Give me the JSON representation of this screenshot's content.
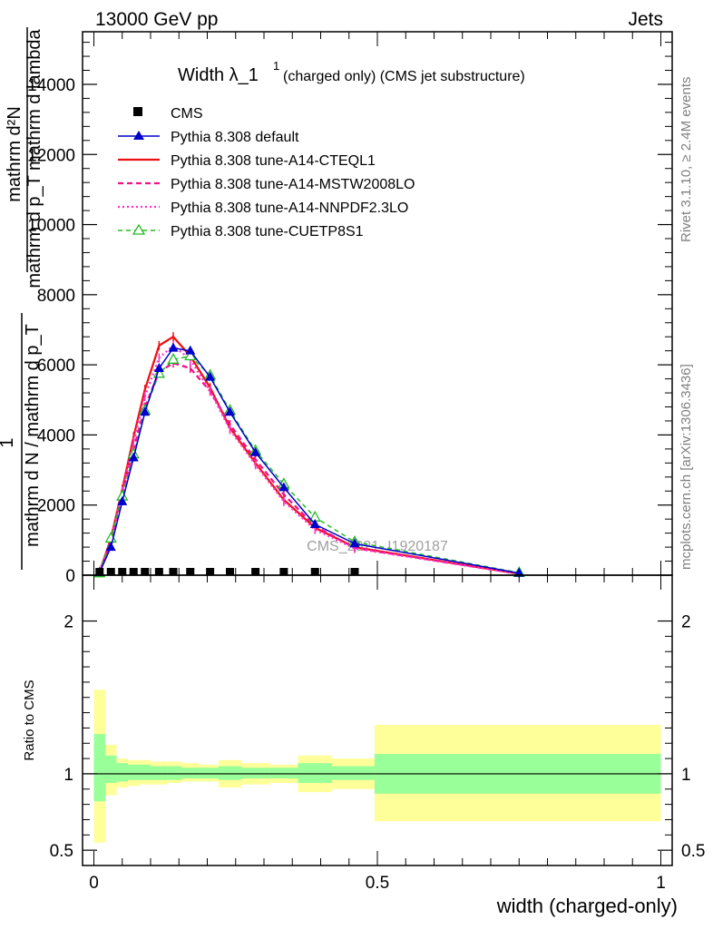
{
  "header": {
    "left": "13000 GeV pp",
    "right": "Jets"
  },
  "side_text": {
    "rivet": "Rivet 3.1.10, ≥ 2.4M events",
    "mcplots": "mcplots.cern.ch [arXiv:1306.3436]"
  },
  "colors": {
    "cms": "#000000",
    "default": "#0000cc",
    "a14_cteql1": "#ee1111",
    "a14_mstw": "#ee1188",
    "a14_nnpdf": "#ff33cc",
    "cuetp8s1": "#22bb22",
    "band_inner": "#99ff99",
    "band_outer": "#ffff99"
  },
  "chart_data": [
    {
      "type": "line",
      "title": "Width λ_1",
      "title_sup": "1",
      "title_suffix": "(charged only) (CMS jet substructure)",
      "ylabel_top": "mathrm d²N",
      "ylabel_mid": "mathrm d p_T mathrm d lambda",
      "ylabel_one": "1",
      "ylabel_bottom": "mathrm d N / mathrm d p_T",
      "ylim": [
        0,
        15500
      ],
      "yticks": [
        0,
        2000,
        4000,
        6000,
        8000,
        10000,
        12000,
        14000
      ],
      "ytick_labels": [
        "0",
        "2000",
        "4000",
        "6000",
        "8000",
        "10000",
        "12000",
        "14000"
      ],
      "xlim": [
        -0.02,
        1.02
      ],
      "watermark": "CMS_2021_I1920187",
      "legend_position": "top-left",
      "legend": [
        "CMS",
        "Pythia 8.308 default",
        "Pythia 8.308 tune-A14-CTEQL1",
        "Pythia 8.308 tune-A14-MSTW2008LO",
        "Pythia 8.308 tune-A14-NNPDF2.3LO",
        "Pythia 8.308 tune-CUETP8S1"
      ],
      "series": [
        {
          "name": "CMS",
          "style": "square",
          "x": [
            0.01,
            0.03,
            0.05,
            0.07,
            0.09,
            0.115,
            0.14,
            0.17,
            0.205,
            0.24,
            0.285,
            0.335,
            0.39,
            0.46
          ],
          "y": [
            0,
            0,
            0,
            0,
            0,
            0,
            0,
            0,
            0,
            0,
            0,
            0,
            0,
            0
          ]
        },
        {
          "name": "Pythia 8.308 default",
          "style": "solid-triangle",
          "x": [
            0.01,
            0.03,
            0.05,
            0.07,
            0.09,
            0.115,
            0.14,
            0.17,
            0.205,
            0.24,
            0.285,
            0.335,
            0.39,
            0.46,
            0.75
          ],
          "y": [
            80,
            800,
            2100,
            3350,
            4650,
            5900,
            6480,
            6400,
            5650,
            4650,
            3500,
            2500,
            1450,
            900,
            60
          ]
        },
        {
          "name": "Pythia 8.308 tune-A14-CTEQL1",
          "style": "solid",
          "x": [
            0.01,
            0.03,
            0.05,
            0.07,
            0.09,
            0.115,
            0.14,
            0.17,
            0.205,
            0.24,
            0.285,
            0.335,
            0.39,
            0.46,
            0.75
          ],
          "y": [
            90,
            1050,
            2450,
            3950,
            5300,
            6550,
            6800,
            6250,
            5350,
            4200,
            3200,
            2150,
            1350,
            800,
            40
          ]
        },
        {
          "name": "Pythia 8.308 tune-A14-MSTW2008LO",
          "style": "dashed",
          "x": [
            0.01,
            0.03,
            0.05,
            0.07,
            0.09,
            0.115,
            0.14,
            0.17,
            0.205,
            0.24,
            0.285,
            0.335,
            0.39,
            0.46,
            0.75
          ],
          "y": [
            70,
            950,
            2300,
            3600,
            4800,
            5800,
            6050,
            5900,
            5250,
            4300,
            3300,
            2300,
            1400,
            780,
            40
          ]
        },
        {
          "name": "Pythia 8.308 tune-A14-NNPDF2.3LO",
          "style": "dotted",
          "x": [
            0.01,
            0.03,
            0.05,
            0.07,
            0.09,
            0.115,
            0.14,
            0.17,
            0.205,
            0.24,
            0.285,
            0.335,
            0.39,
            0.46,
            0.75
          ],
          "y": [
            90,
            1000,
            2400,
            3800,
            5100,
            6200,
            6550,
            6150,
            5250,
            4150,
            3150,
            2100,
            1300,
            760,
            40
          ]
        },
        {
          "name": "Pythia 8.308 tune-CUETP8S1",
          "style": "dashed-open-triangle",
          "x": [
            0.01,
            0.03,
            0.05,
            0.07,
            0.09,
            0.115,
            0.14,
            0.17,
            0.205,
            0.24,
            0.285,
            0.335,
            0.39,
            0.46,
            0.75
          ],
          "y": [
            60,
            1050,
            2250,
            3450,
            4700,
            5750,
            6150,
            6250,
            5700,
            4700,
            3550,
            2600,
            1650,
            950,
            70
          ]
        }
      ]
    },
    {
      "type": "area",
      "ylabel": "Ratio to CMS",
      "xlabel": "width (charged-only)",
      "xlim": [
        -0.02,
        1.02
      ],
      "ylim": [
        0.4,
        2.3
      ],
      "yticks": [
        0.5,
        1,
        2
      ],
      "ytick_labels": [
        "0.5",
        "1",
        "2"
      ],
      "xticks": [
        0,
        0.5,
        1
      ],
      "xtick_labels": [
        "0",
        "0.5",
        "1"
      ],
      "bins": [
        {
          "lo": 0.0,
          "hi": 0.02,
          "inner": [
            0.82,
            1.26
          ],
          "outer": [
            0.55,
            1.55
          ]
        },
        {
          "lo": 0.02,
          "hi": 0.04,
          "inner": [
            0.94,
            1.12
          ],
          "outer": [
            0.86,
            1.19
          ]
        },
        {
          "lo": 0.04,
          "hi": 0.06,
          "inner": [
            0.95,
            1.07
          ],
          "outer": [
            0.91,
            1.1
          ]
        },
        {
          "lo": 0.06,
          "hi": 0.08,
          "inner": [
            0.96,
            1.06
          ],
          "outer": [
            0.92,
            1.09
          ]
        },
        {
          "lo": 0.08,
          "hi": 0.1,
          "inner": [
            0.96,
            1.06
          ],
          "outer": [
            0.93,
            1.09
          ]
        },
        {
          "lo": 0.1,
          "hi": 0.13,
          "inner": [
            0.96,
            1.05
          ],
          "outer": [
            0.93,
            1.08
          ]
        },
        {
          "lo": 0.13,
          "hi": 0.155,
          "inner": [
            0.96,
            1.05
          ],
          "outer": [
            0.94,
            1.08
          ]
        },
        {
          "lo": 0.155,
          "hi": 0.185,
          "inner": [
            0.97,
            1.04
          ],
          "outer": [
            0.95,
            1.07
          ]
        },
        {
          "lo": 0.185,
          "hi": 0.22,
          "inner": [
            0.97,
            1.04
          ],
          "outer": [
            0.95,
            1.06
          ]
        },
        {
          "lo": 0.22,
          "hi": 0.26,
          "inner": [
            0.96,
            1.05
          ],
          "outer": [
            0.91,
            1.09
          ]
        },
        {
          "lo": 0.26,
          "hi": 0.31,
          "inner": [
            0.97,
            1.04
          ],
          "outer": [
            0.93,
            1.07
          ]
        },
        {
          "lo": 0.31,
          "hi": 0.36,
          "inner": [
            0.97,
            1.04
          ],
          "outer": [
            0.94,
            1.06
          ]
        },
        {
          "lo": 0.36,
          "hi": 0.42,
          "inner": [
            0.94,
            1.07
          ],
          "outer": [
            0.88,
            1.12
          ]
        },
        {
          "lo": 0.42,
          "hi": 0.495,
          "inner": [
            0.96,
            1.05
          ],
          "outer": [
            0.9,
            1.1
          ]
        },
        {
          "lo": 0.495,
          "hi": 1.0,
          "inner": [
            0.87,
            1.13
          ],
          "outer": [
            0.69,
            1.32
          ]
        }
      ]
    }
  ]
}
